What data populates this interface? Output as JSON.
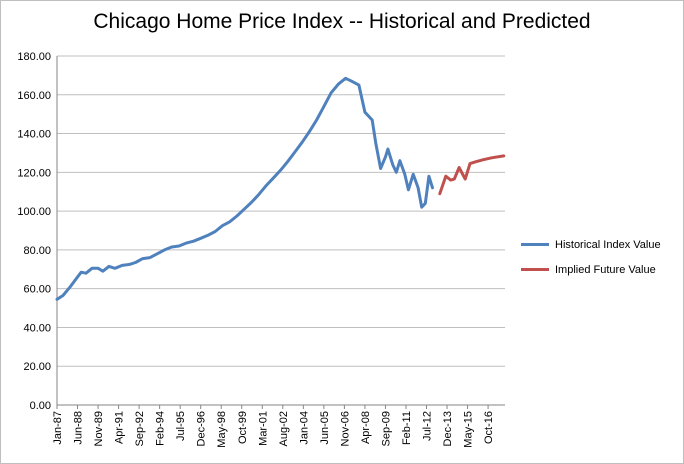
{
  "chart_data": {
    "type": "line",
    "title": "Chicago Home Price Index -- Historical and Predicted",
    "xlabel": "",
    "ylabel": "",
    "ylim": [
      0,
      180
    ],
    "yticks": [
      "0.00",
      "20.00",
      "40.00",
      "60.00",
      "80.00",
      "100.00",
      "120.00",
      "140.00",
      "160.00",
      "180.00"
    ],
    "xtick_labels": [
      "Jan-87",
      "Jun-88",
      "Nov-89",
      "Apr-91",
      "Sep-92",
      "Feb-94",
      "Jul-95",
      "Dec-96",
      "May-98",
      "Oct-99",
      "Mar-01",
      "Aug-02",
      "Jan-04",
      "Jun-05",
      "Nov-06",
      "Apr-08",
      "Sep-09",
      "Feb-11",
      "Jul-12",
      "Dec-13",
      "May-15",
      "Oct-16"
    ],
    "xlim": [
      "1987-01",
      "2017-12"
    ],
    "legend_position": "right",
    "grid": "horizontal",
    "series": [
      {
        "name": "Historical Index Value",
        "color": "#4f81bd",
        "points": [
          [
            "1987-01",
            54.5
          ],
          [
            "1987-06",
            56.5
          ],
          [
            "1987-12",
            61
          ],
          [
            "1988-06",
            66
          ],
          [
            "1988-09",
            68.5
          ],
          [
            "1989-01",
            68
          ],
          [
            "1989-06",
            70.5
          ],
          [
            "1989-11",
            70.5
          ],
          [
            "1990-03",
            69
          ],
          [
            "1990-08",
            71.5
          ],
          [
            "1991-01",
            70.5
          ],
          [
            "1991-07",
            72
          ],
          [
            "1992-01",
            72.5
          ],
          [
            "1992-06",
            73.5
          ],
          [
            "1992-12",
            75.5
          ],
          [
            "1993-06",
            76
          ],
          [
            "1993-12",
            78
          ],
          [
            "1994-06",
            80
          ],
          [
            "1994-12",
            81.5
          ],
          [
            "1995-06",
            82
          ],
          [
            "1995-12",
            83.5
          ],
          [
            "1996-06",
            84.5
          ],
          [
            "1996-12",
            86
          ],
          [
            "1997-06",
            87.5
          ],
          [
            "1997-12",
            89.5
          ],
          [
            "1998-06",
            92.5
          ],
          [
            "1998-12",
            94.5
          ],
          [
            "1999-06",
            97.5
          ],
          [
            "1999-12",
            101
          ],
          [
            "2000-06",
            104.5
          ],
          [
            "2000-12",
            108.5
          ],
          [
            "2001-06",
            113
          ],
          [
            "2001-12",
            117
          ],
          [
            "2002-06",
            121
          ],
          [
            "2002-12",
            125.5
          ],
          [
            "2003-06",
            130.5
          ],
          [
            "2003-12",
            135.5
          ],
          [
            "2004-06",
            141
          ],
          [
            "2004-12",
            147
          ],
          [
            "2005-06",
            154
          ],
          [
            "2005-12",
            161
          ],
          [
            "2006-06",
            165.5
          ],
          [
            "2006-12",
            168.5
          ],
          [
            "2007-05",
            167
          ],
          [
            "2007-11",
            165
          ],
          [
            "2008-04",
            151
          ],
          [
            "2008-10",
            147
          ],
          [
            "2009-01",
            135
          ],
          [
            "2009-05",
            122
          ],
          [
            "2009-09",
            128
          ],
          [
            "2009-11",
            132
          ],
          [
            "2010-03",
            124
          ],
          [
            "2010-06",
            120
          ],
          [
            "2010-09",
            126
          ],
          [
            "2011-01",
            119
          ],
          [
            "2011-04",
            111
          ],
          [
            "2011-08",
            119
          ],
          [
            "2011-12",
            112
          ],
          [
            "2012-03",
            102
          ],
          [
            "2012-06",
            104
          ],
          [
            "2012-09",
            118
          ],
          [
            "2012-12",
            112
          ]
        ]
      },
      {
        "name": "Implied Future Value",
        "color": "#c0504d",
        "points": [
          [
            "2013-06",
            109
          ],
          [
            "2013-11",
            118
          ],
          [
            "2014-03",
            116
          ],
          [
            "2014-06",
            116.5
          ],
          [
            "2014-10",
            122.5
          ],
          [
            "2015-03",
            116.5
          ],
          [
            "2015-07",
            124.5
          ],
          [
            "2015-12",
            125.5
          ],
          [
            "2016-06",
            126.5
          ],
          [
            "2017-01",
            127.5
          ],
          [
            "2017-11",
            128.5
          ]
        ]
      }
    ]
  }
}
